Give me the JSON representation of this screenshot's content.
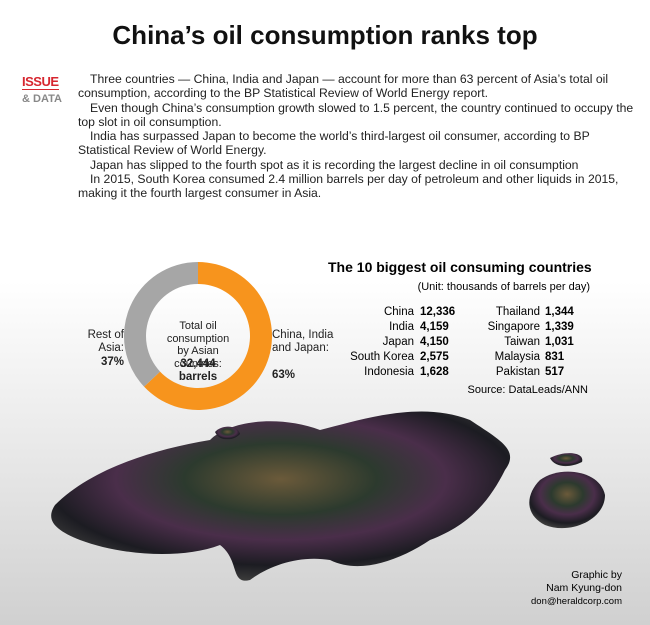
{
  "title": "China’s oil consumption ranks top",
  "badge": {
    "top": "ISSUE",
    "bottom": "& DATA"
  },
  "paragraphs": [
    "Three countries — China, India and Japan — account for more than 63 percent of Asia’s total oil consumption, according to the BP Statistical Review of World Energy report.",
    "Even though China’s consumption growth slowed to 1.5 percent, the country continued to occupy the top slot in oil consumption.",
    "India has surpassed Japan to become the world’s third-largest oil consumer, according to BP Statistical Review of World Energy.",
    "Japan has slipped to the fourth spot as it is recording the largest decline in oil consumption",
    "In 2015, South Korea consumed 2.4 million barrels per day of petroleum and other liquids in 2015, making it the fourth largest consumer in Asia."
  ],
  "chart_data": {
    "type": "pie",
    "categories": [
      "Rest of Asia:",
      "China, India and Japan:"
    ],
    "values": [
      37,
      63
    ],
    "value_labels": [
      "37%",
      "63%"
    ],
    "colors": [
      "#a6a6a6",
      "#f7941d"
    ],
    "center_text": [
      "Total oil consumption by Asian countries:",
      "32,444 barrels"
    ]
  },
  "table": {
    "title": "The 10 biggest oil consuming countries",
    "unit": "(Unit: thousands of barrels per day)",
    "rows": [
      [
        "China",
        "12,336"
      ],
      [
        "India",
        "4,159"
      ],
      [
        "Japan",
        "4,150"
      ],
      [
        "South Korea",
        "2,575"
      ],
      [
        "Indonesia",
        "1,628"
      ],
      [
        "Thailand",
        "1,344"
      ],
      [
        "Singapore",
        "1,339"
      ],
      [
        "Taiwan",
        "1,031"
      ],
      [
        "Malaysia",
        "831"
      ],
      [
        "Pakistan",
        "517"
      ]
    ],
    "source": "Source: DataLeads/ANN"
  },
  "credit": [
    "Graphic by",
    "Nam Kyung-don",
    "don@heraldcorp.com"
  ]
}
